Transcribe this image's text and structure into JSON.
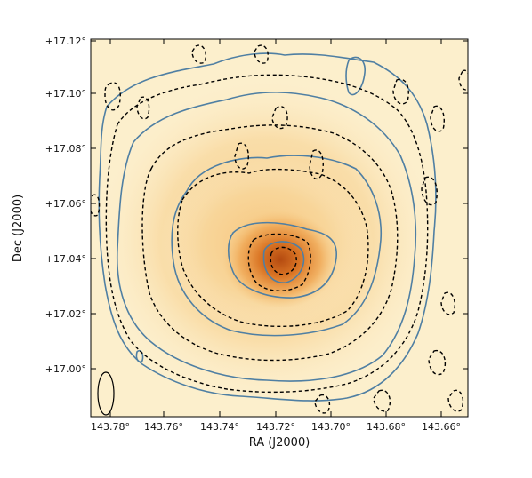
{
  "figure": {
    "xlabel": "RA (J2000)",
    "ylabel": "Dec (J2000)",
    "x_ticks": [
      "143.78°",
      "143.76°",
      "143.74°",
      "143.72°",
      "143.70°",
      "143.68°",
      "143.66°"
    ],
    "y_ticks": [
      "+17.12°",
      "+17.10°",
      "+17.08°",
      "+17.06°",
      "+17.04°",
      "+17.02°",
      "+17.00°"
    ],
    "colors": {
      "background_low": "#fdf3d6",
      "background_high": "#c85a12",
      "solid_contour": "#4f7fa3",
      "dashed_contour": "#000000"
    }
  }
}
